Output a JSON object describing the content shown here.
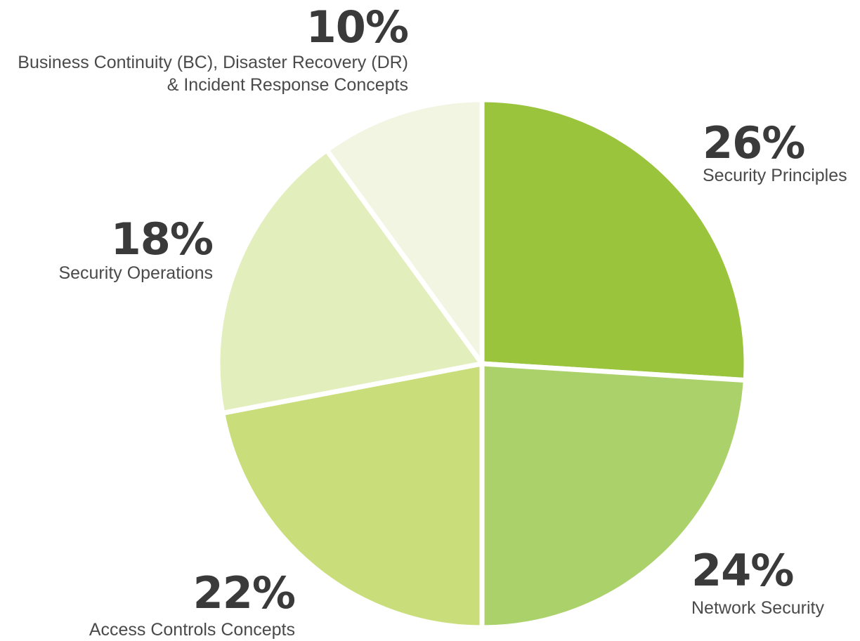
{
  "chart_data": {
    "type": "pie",
    "start_angle_deg": 0,
    "direction": "clockwise",
    "slices": [
      {
        "label_lines": [
          "Security Principles"
        ],
        "value": 26,
        "value_label": "26%",
        "color": "#9bc43d"
      },
      {
        "label_lines": [
          "Network Security"
        ],
        "value": 24,
        "value_label": "24%",
        "color": "#abd16b"
      },
      {
        "label_lines": [
          "Access Controls Concepts"
        ],
        "value": 22,
        "value_label": "22%",
        "color": "#c9de7b"
      },
      {
        "label_lines": [
          "Security Operations"
        ],
        "value": 18,
        "value_label": "18%",
        "color": "#e3eebd"
      },
      {
        "label_lines": [
          "Business Continuity (BC), Disaster Recovery (DR)",
          "& Incident Response Concepts"
        ],
        "value": 10,
        "value_label": "10%",
        "color": "#f2f5e1"
      }
    ]
  }
}
